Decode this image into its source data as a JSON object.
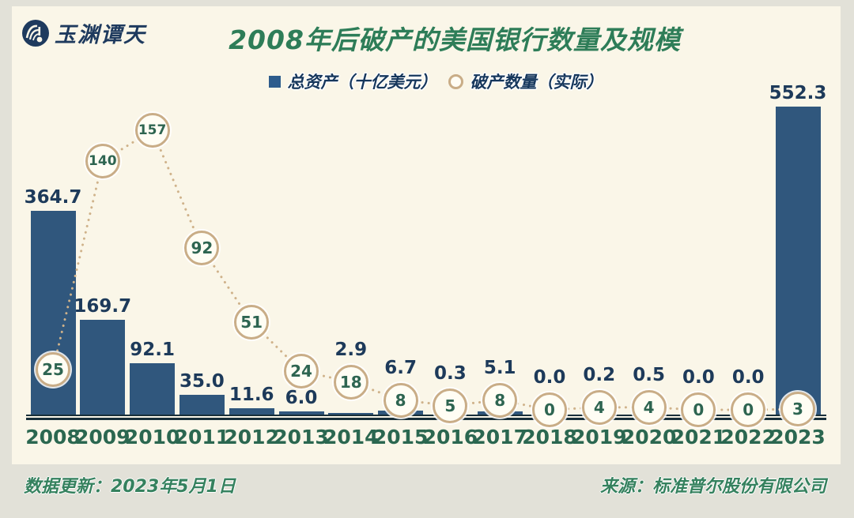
{
  "page": {
    "outer_bg": "#e2e1d8",
    "card_bg": "#faf6e8"
  },
  "logo": {
    "text": "玉渊谭天",
    "color": "#1e3a5e"
  },
  "header": {
    "title": "2008年后破产的美国银行数量及规模",
    "title_color": "#2e7d58"
  },
  "chart_data": {
    "type": "bar",
    "title": "2008年后破产的美国银行数量及规模",
    "categories": [
      "2008",
      "2009",
      "2010",
      "2011",
      "2012",
      "2013",
      "2014",
      "2015",
      "2016",
      "2017",
      "2018",
      "2019",
      "2020",
      "2021",
      "2022",
      "2023"
    ],
    "series": [
      {
        "name": "总资产（十亿美元）",
        "type": "bar",
        "values": [
          364.7,
          169.7,
          92.1,
          35.0,
          11.6,
          6.0,
          2.9,
          6.7,
          0.3,
          5.1,
          0.0,
          0.2,
          0.5,
          0.0,
          0.0,
          552.3
        ],
        "bar_color": "#30577d",
        "label_color": "#1d3a5a",
        "marker": "square",
        "marker_color": "#2d5c8c"
      },
      {
        "name": "破产数量（实际）",
        "type": "scatter",
        "values": [
          25,
          140,
          157,
          92,
          51,
          24,
          18,
          8,
          5,
          8,
          0,
          4,
          4,
          0,
          0,
          3
        ],
        "marker": "circle",
        "marker_border_color": "#c9ad87",
        "marker_fill_color": "#fffdf4",
        "label_color": "#2e6551",
        "connector": "dotted",
        "connector_color": "#cfb28a"
      }
    ],
    "xlabel": "",
    "ylabel": "",
    "x_tick_color": "#2b6750",
    "y_axis": "hidden",
    "grid": false,
    "legend_position": "top",
    "axis_color": "#182f3a",
    "note": "bars labeled with values; counts shown inside circles"
  },
  "footer": {
    "updated": "数据更新：2023年5月1日",
    "source": "来源：标准普尔股份有限公司",
    "color": "#35815e"
  }
}
